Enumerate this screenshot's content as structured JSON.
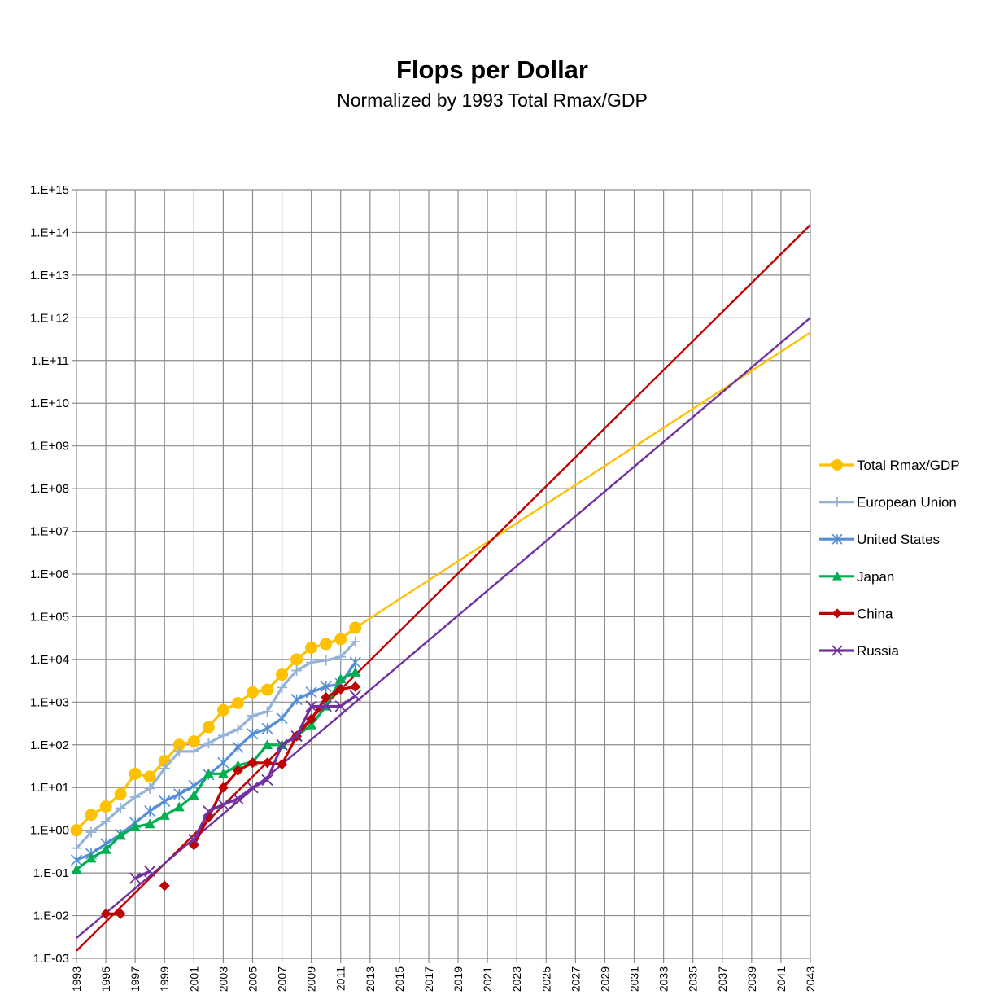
{
  "chart_data": {
    "type": "line",
    "title": "Flops per Dollar",
    "subtitle": "Normalized by 1993 Total Rmax/GDP",
    "y_scale": "log",
    "ylim_exp": [
      -3,
      15
    ],
    "y_ticks": [
      "1.E-03",
      "1.E-02",
      "1.E-01",
      "1.E+00",
      "1.E+01",
      "1.E+02",
      "1.E+03",
      "1.E+04",
      "1.E+05",
      "1.E+06",
      "1.E+07",
      "1.E+08",
      "1.E+09",
      "1.E+10",
      "1.E+11",
      "1.E+12",
      "1.E+13",
      "1.E+14",
      "1.E+15"
    ],
    "xlim": [
      1993,
      2043
    ],
    "x_ticks": [
      "1993",
      "1995",
      "1997",
      "1999",
      "2001",
      "2003",
      "2005",
      "2007",
      "2009",
      "2011",
      "2013",
      "2015",
      "2017",
      "2019",
      "2021",
      "2023",
      "2025",
      "2027",
      "2029",
      "2031",
      "2033",
      "2035",
      "2037",
      "2039",
      "2041",
      "2043"
    ],
    "grid": true,
    "legend_position": "right",
    "series": [
      {
        "name": "Total Rmax/GDP",
        "color": "#FFC000",
        "marker": "circle",
        "x": [
          1993,
          1994,
          1995,
          1996,
          1997,
          1998,
          1999,
          2000,
          2001,
          2002,
          2003,
          2004,
          2005,
          2006,
          2007,
          2008,
          2009,
          2010,
          2011,
          2012
        ],
        "y": [
          1.0,
          2.3,
          3.6,
          7.0,
          21,
          18,
          42,
          100,
          120,
          260,
          650,
          950,
          1700,
          1950,
          4400,
          10000,
          19000,
          23000,
          30000,
          55000
        ]
      },
      {
        "name": "European Union",
        "color": "#95B3D7",
        "marker": "plus",
        "x": [
          1993,
          1994,
          1995,
          1996,
          1997,
          1998,
          1999,
          2000,
          2001,
          2002,
          2003,
          2004,
          2005,
          2006,
          2007,
          2008,
          2009,
          2010,
          2011,
          2012
        ],
        "y": [
          0.38,
          0.9,
          1.6,
          3.3,
          6.0,
          9.5,
          28,
          70,
          70,
          110,
          165,
          230,
          480,
          600,
          2200,
          5500,
          8500,
          9500,
          11500,
          26000
        ]
      },
      {
        "name": "United States",
        "color": "#558ED5",
        "marker": "asterisk",
        "x": [
          1993,
          1994,
          1995,
          1996,
          1997,
          1998,
          1999,
          2000,
          2001,
          2002,
          2003,
          2004,
          2005,
          2006,
          2007,
          2008,
          2009,
          2010,
          2011,
          2012
        ],
        "y": [
          0.2,
          0.28,
          0.48,
          0.8,
          1.5,
          2.8,
          4.8,
          7.0,
          11,
          20,
          38,
          88,
          180,
          240,
          420,
          1150,
          1700,
          2300,
          2700,
          8500
        ]
      },
      {
        "name": "Japan",
        "color": "#00B050",
        "marker": "triangle",
        "x": [
          1993,
          1994,
          1995,
          1996,
          1997,
          1998,
          1999,
          2000,
          2001,
          2002,
          2003,
          2004,
          2005,
          2006,
          2007,
          2008,
          2009,
          2010,
          2011,
          2012
        ],
        "y": [
          0.12,
          0.22,
          0.35,
          0.75,
          1.2,
          1.4,
          2.2,
          3.5,
          6.5,
          21,
          21,
          33,
          40,
          100,
          100,
          160,
          290,
          800,
          3500,
          5000
        ]
      },
      {
        "name": "China",
        "color": "#C00000",
        "marker": "diamond",
        "x": [
          1995,
          1996,
          1999,
          2001,
          2002,
          2003,
          2004,
          2005,
          2006,
          2007,
          2008,
          2009,
          2010,
          2011,
          2012
        ],
        "y": [
          0.011,
          0.011,
          0.05,
          0.45,
          2.0,
          10,
          25,
          38,
          38,
          35,
          160,
          400,
          1300,
          2000,
          2300
        ]
      },
      {
        "name": "Russia",
        "color": "#7030A0",
        "marker": "cross",
        "x": [
          1997,
          1998,
          2001,
          2002,
          2003,
          2004,
          2005,
          2006,
          2007,
          2008,
          2009,
          2010,
          2011,
          2012
        ],
        "y": [
          0.075,
          0.11,
          0.6,
          2.8,
          4.0,
          5.5,
          10,
          15,
          100,
          160,
          800,
          800,
          800,
          1400
        ]
      }
    ],
    "trend_lines": [
      {
        "color": "#FFC000",
        "x": [
          2012,
          2043
        ],
        "y": [
          55000,
          450000000000
        ]
      },
      {
        "color": "#C00000",
        "x": [
          1993,
          2043
        ],
        "y": [
          0.0015,
          150000000000000
        ]
      },
      {
        "color": "#7030A0",
        "x": [
          1993,
          2043
        ],
        "y": [
          0.003,
          1000000000000
        ]
      }
    ]
  }
}
